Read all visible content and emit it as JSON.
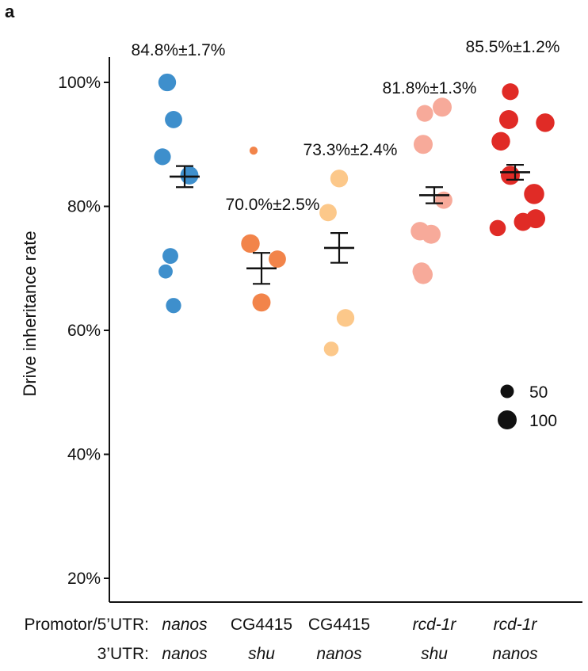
{
  "panel_label": "a",
  "chart_data": {
    "type": "scatter",
    "ylabel": "Drive inheritance rate",
    "ylim": [
      17,
      104
    ],
    "yticks": [
      20,
      40,
      60,
      80,
      100
    ],
    "ytick_labels": [
      "20%",
      "40%",
      "60%",
      "80%",
      "100%"
    ],
    "row_labels": [
      "Promotor/5’UTR:",
      "3’UTR:"
    ],
    "groups": [
      {
        "promoter": "nanos",
        "promoter_italic": true,
        "utr": "nanos",
        "utr_italic": true,
        "color": "#3e8fcc",
        "mean": 84.8,
        "sem": 1.7,
        "label": "84.8%±1.7%",
        "points": [
          {
            "y": 100,
            "n": 85
          },
          {
            "y": 94,
            "n": 80
          },
          {
            "y": 88,
            "n": 75
          },
          {
            "y": 85,
            "n": 90
          },
          {
            "y": 72,
            "n": 65
          },
          {
            "y": 69.5,
            "n": 50
          },
          {
            "y": 64,
            "n": 60
          }
        ]
      },
      {
        "promoter": "CG4415",
        "promoter_italic": false,
        "utr": "shu",
        "utr_italic": true,
        "color": "#f2844a",
        "mean": 70.0,
        "sem": 2.5,
        "label": "70.0%±2.5%",
        "points": [
          {
            "y": 89,
            "n": 12
          },
          {
            "y": 74,
            "n": 95
          },
          {
            "y": 71.5,
            "n": 80
          },
          {
            "y": 64.5,
            "n": 90
          }
        ]
      },
      {
        "promoter": "CG4415",
        "promoter_italic": false,
        "utr": "nanos",
        "utr_italic": true,
        "color": "#fcc88a",
        "mean": 73.3,
        "sem": 2.4,
        "label": "73.3%±2.4%",
        "points": [
          {
            "y": 84.5,
            "n": 85
          },
          {
            "y": 79,
            "n": 80
          },
          {
            "y": 62,
            "n": 85
          },
          {
            "y": 57,
            "n": 55
          }
        ]
      },
      {
        "promoter": "rcd-1r",
        "promoter_italic": true,
        "utr": "shu",
        "utr_italic": true,
        "color": "#f7aa9a",
        "mean": 81.8,
        "sem": 1.3,
        "label": "81.8%±1.3%",
        "points": [
          {
            "y": 96,
            "n": 100
          },
          {
            "y": 95,
            "n": 75
          },
          {
            "y": 90,
            "n": 100
          },
          {
            "y": 81,
            "n": 80
          },
          {
            "y": 76,
            "n": 95
          },
          {
            "y": 75.5,
            "n": 100
          },
          {
            "y": 69.5,
            "n": 90
          },
          {
            "y": 69,
            "n": 100
          }
        ]
      },
      {
        "promoter": "rcd-1r",
        "promoter_italic": true,
        "utr": "nanos",
        "utr_italic": true,
        "color": "#e02b26",
        "mean": 85.5,
        "sem": 1.2,
        "label": "85.5%±1.2%",
        "points": [
          {
            "y": 98.5,
            "n": 75
          },
          {
            "y": 94,
            "n": 100
          },
          {
            "y": 93.5,
            "n": 95
          },
          {
            "y": 90.5,
            "n": 95
          },
          {
            "y": 85,
            "n": 100
          },
          {
            "y": 82,
            "n": 115
          },
          {
            "y": 78,
            "n": 100
          },
          {
            "y": 77.5,
            "n": 90
          },
          {
            "y": 76.5,
            "n": 70
          }
        ]
      }
    ],
    "size_legend": [
      {
        "n": 50,
        "label": "50"
      },
      {
        "n": 100,
        "label": "100"
      }
    ]
  }
}
